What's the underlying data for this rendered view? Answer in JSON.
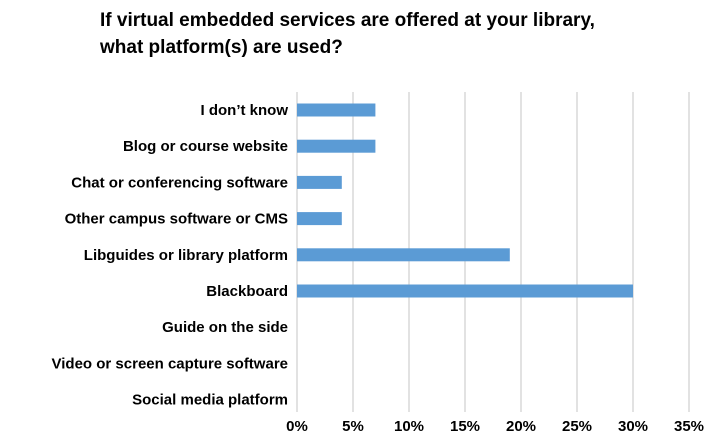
{
  "chart_data": {
    "type": "bar",
    "orientation": "horizontal",
    "title_lines": [
      "If virtual embedded services are offered at your library,",
      "what platform(s) are used?"
    ],
    "categories": [
      "I don’t know",
      "Blog or course website",
      "Chat or conferencing software",
      "Other campus software or CMS",
      "Libguides or library platform",
      "Blackboard",
      "Guide on the side",
      "Video or screen capture software",
      "Social media platform"
    ],
    "values": [
      7,
      7,
      4,
      4,
      19,
      30,
      0,
      0,
      0
    ],
    "xlim": [
      0,
      35
    ],
    "xticks": [
      0,
      5,
      10,
      15,
      20,
      25,
      30,
      35
    ],
    "tick_format_suffix": "%",
    "grid": "vertical",
    "legend": "none",
    "bar_color": "#5B9BD5",
    "grid_color": "#D9D9D9"
  }
}
